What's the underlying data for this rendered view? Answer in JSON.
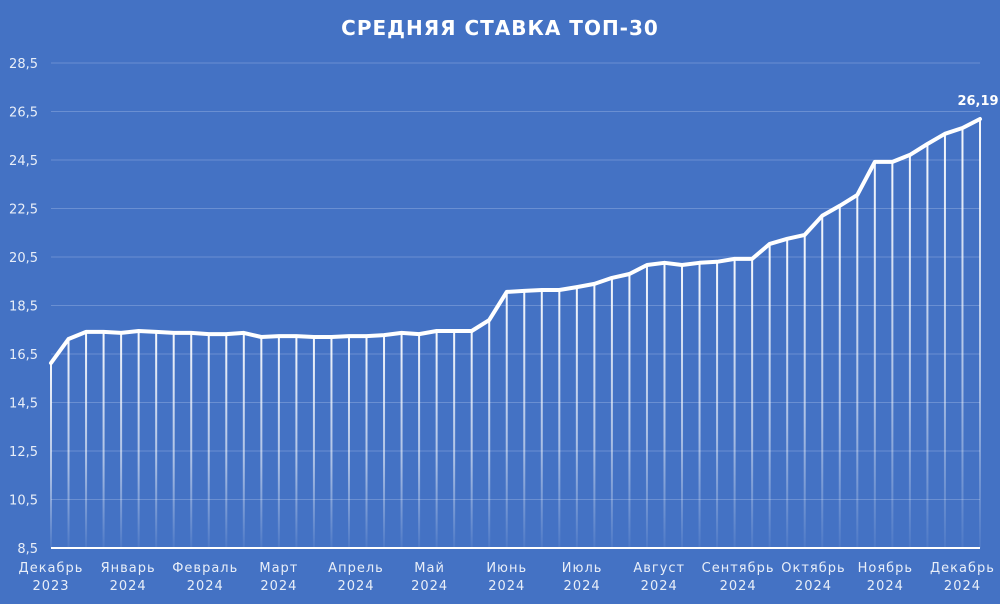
{
  "chart_data": {
    "type": "line",
    "title": "СРЕДНЯЯ СТАВКА ТОП-30",
    "xlabel": "",
    "ylabel": "",
    "ylim": [
      8.5,
      28.5
    ],
    "yticks": [
      "8,5",
      "10,5",
      "12,5",
      "14,5",
      "16,5",
      "18,5",
      "20,5",
      "22,5",
      "24,5",
      "26,5",
      "28,5"
    ],
    "grid": true,
    "legend": null,
    "month_labels": [
      {
        "month": "Декабрь",
        "year": "2023",
        "index": 0
      },
      {
        "month": "Январь",
        "year": "2024",
        "index": 4.4
      },
      {
        "month": "Февраль",
        "year": "2024",
        "index": 8.8
      },
      {
        "month": "Март",
        "year": "2024",
        "index": 13
      },
      {
        "month": "Апрель",
        "year": "2024",
        "index": 17.4
      },
      {
        "month": "Май",
        "year": "2024",
        "index": 21.6
      },
      {
        "month": "Июнь",
        "year": "2024",
        "index": 26
      },
      {
        "month": "Июль",
        "year": "2024",
        "index": 30.3
      },
      {
        "month": "Август",
        "year": "2024",
        "index": 34.7
      },
      {
        "month": "Сентябрь",
        "year": "2024",
        "index": 39.2
      },
      {
        "month": "Октябрь",
        "year": "2024",
        "index": 43.5
      },
      {
        "month": "Ноябрь",
        "year": "2024",
        "index": 47.6
      },
      {
        "month": "Декабрь",
        "year": "2024",
        "index": 52
      }
    ],
    "series": [
      {
        "name": "Средняя ставка ТОП-30",
        "values": [
          16.13,
          17.12,
          17.41,
          17.41,
          17.37,
          17.45,
          17.41,
          17.37,
          17.37,
          17.32,
          17.32,
          17.37,
          17.2,
          17.24,
          17.24,
          17.2,
          17.2,
          17.24,
          17.24,
          17.28,
          17.37,
          17.32,
          17.45,
          17.45,
          17.45,
          17.9,
          19.06,
          19.1,
          19.14,
          19.14,
          19.26,
          19.39,
          19.64,
          19.8,
          20.17,
          20.26,
          20.17,
          20.26,
          20.3,
          20.42,
          20.42,
          21.04,
          21.25,
          21.41,
          22.2,
          22.61,
          23.06,
          24.42,
          24.42,
          24.71,
          25.16,
          25.58,
          25.82,
          26.19
        ]
      }
    ],
    "annotations": [
      {
        "text": "26,19",
        "point_index": 53
      }
    ]
  },
  "colors": {
    "background": "#4472c4",
    "line": "#ffffff",
    "grid": "#6a8fd2",
    "text": "#e8eef8"
  }
}
